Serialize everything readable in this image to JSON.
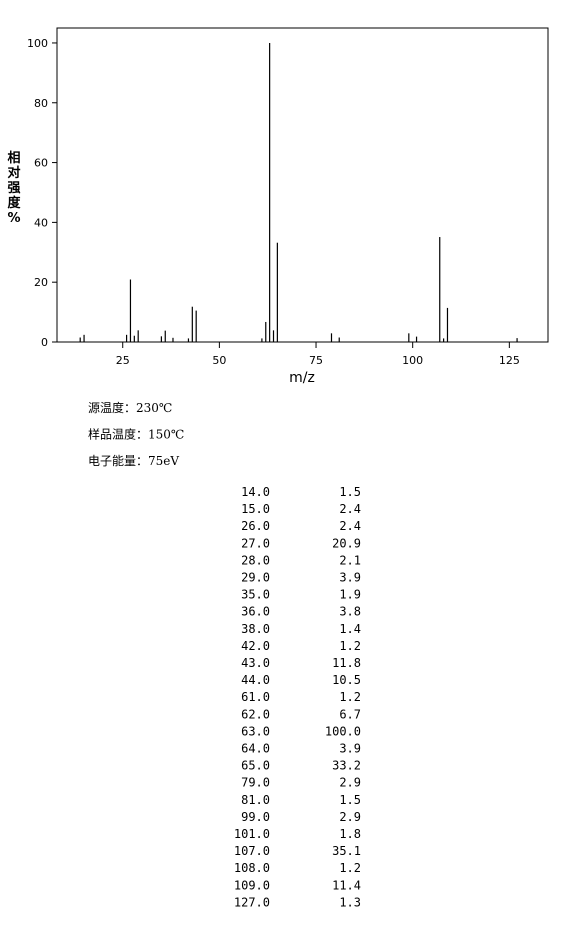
{
  "chart_data": {
    "type": "stem",
    "xlabel": "m/z",
    "ylabel": "相对强度%",
    "x": [
      14,
      15,
      26,
      27,
      28,
      29,
      35,
      36,
      38,
      42,
      43,
      44,
      61,
      62,
      63,
      64,
      65,
      79,
      81,
      99,
      101,
      107,
      108,
      109,
      127
    ],
    "values": [
      1.5,
      2.4,
      2.4,
      20.9,
      2.1,
      3.9,
      1.9,
      3.8,
      1.4,
      1.2,
      11.8,
      10.5,
      1.2,
      6.7,
      100,
      3.9,
      33.2,
      2.9,
      1.5,
      2.9,
      1.8,
      35.1,
      1.2,
      11.4,
      1.3
    ],
    "x_labels": [
      "14.0",
      "15.0",
      "26.0",
      "27.0",
      "28.0",
      "29.0",
      "35.0",
      "36.0",
      "38.0",
      "42.0",
      "43.0",
      "44.0",
      "61.0",
      "62.0",
      "63.0",
      "64.0",
      "65.0",
      "79.0",
      "81.0",
      "99.0",
      "101.0",
      "107.0",
      "108.0",
      "109.0",
      "127.0"
    ],
    "value_labels": [
      "1.5",
      "2.4",
      "2.4",
      "20.9",
      "2.1",
      "3.9",
      "1.9",
      "3.8",
      "1.4",
      "1.2",
      "11.8",
      "10.5",
      "1.2",
      "6.7",
      "100.0",
      "3.9",
      "33.2",
      "2.9",
      "1.5",
      "2.9",
      "1.8",
      "35.1",
      "1.2",
      "11.4",
      "1.3"
    ],
    "color": "#000000",
    "xlim": [
      8,
      135
    ],
    "xticks": [
      25,
      50,
      75,
      100,
      125
    ],
    "ylim": [
      0,
      105
    ],
    "yticks": [
      0,
      20,
      40,
      60,
      80,
      100
    ]
  },
  "conditions": [
    "源温度：230℃",
    "样品温度：150℃",
    "电子能量：75eV"
  ]
}
